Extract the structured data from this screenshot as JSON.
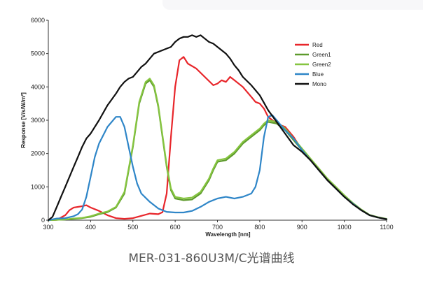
{
  "chart_data": {
    "type": "line",
    "title": "",
    "xlabel": "Wavelength [nm]",
    "ylabel": "Response [V/s/W/m²]",
    "xlim": [
      300,
      1100
    ],
    "ylim": [
      0,
      6000
    ],
    "x_ticks": [
      "300",
      "400",
      "500",
      "600",
      "700",
      "800",
      "900",
      "1000",
      "1100"
    ],
    "y_ticks": [
      "0",
      "1000",
      "2000",
      "3000",
      "4000",
      "5000",
      "6000"
    ],
    "grid": false,
    "legend_position": "top-right",
    "series": [
      {
        "name": "Red",
        "color": "#e8262b",
        "points": [
          [
            300,
            0
          ],
          [
            320,
            10
          ],
          [
            340,
            150
          ],
          [
            350,
            300
          ],
          [
            360,
            380
          ],
          [
            380,
            420
          ],
          [
            390,
            450
          ],
          [
            400,
            380
          ],
          [
            420,
            280
          ],
          [
            440,
            150
          ],
          [
            460,
            60
          ],
          [
            480,
            40
          ],
          [
            500,
            60
          ],
          [
            520,
            130
          ],
          [
            540,
            200
          ],
          [
            560,
            180
          ],
          [
            570,
            240
          ],
          [
            580,
            800
          ],
          [
            590,
            2500
          ],
          [
            600,
            4000
          ],
          [
            610,
            4800
          ],
          [
            620,
            4900
          ],
          [
            630,
            4700
          ],
          [
            650,
            4550
          ],
          [
            670,
            4300
          ],
          [
            690,
            4050
          ],
          [
            700,
            4100
          ],
          [
            710,
            4200
          ],
          [
            720,
            4150
          ],
          [
            730,
            4300
          ],
          [
            740,
            4200
          ],
          [
            760,
            4000
          ],
          [
            780,
            3700
          ],
          [
            790,
            3550
          ],
          [
            800,
            3500
          ],
          [
            810,
            3350
          ],
          [
            820,
            3100
          ],
          [
            830,
            3000
          ],
          [
            840,
            2900
          ],
          [
            860,
            2800
          ],
          [
            880,
            2500
          ],
          [
            900,
            2100
          ],
          [
            920,
            1800
          ],
          [
            940,
            1500
          ],
          [
            960,
            1200
          ],
          [
            980,
            950
          ],
          [
            1000,
            700
          ],
          [
            1020,
            500
          ],
          [
            1040,
            300
          ],
          [
            1060,
            150
          ],
          [
            1080,
            80
          ],
          [
            1100,
            30
          ]
        ]
      },
      {
        "name": "Green1",
        "color": "#5d9a2c",
        "points": [
          [
            300,
            0
          ],
          [
            320,
            10
          ],
          [
            340,
            20
          ],
          [
            360,
            40
          ],
          [
            380,
            60
          ],
          [
            400,
            100
          ],
          [
            420,
            180
          ],
          [
            440,
            240
          ],
          [
            460,
            380
          ],
          [
            480,
            800
          ],
          [
            500,
            2200
          ],
          [
            515,
            3500
          ],
          [
            530,
            4100
          ],
          [
            540,
            4200
          ],
          [
            550,
            4000
          ],
          [
            560,
            3400
          ],
          [
            570,
            2500
          ],
          [
            580,
            1600
          ],
          [
            590,
            900
          ],
          [
            600,
            650
          ],
          [
            620,
            600
          ],
          [
            640,
            620
          ],
          [
            660,
            800
          ],
          [
            680,
            1200
          ],
          [
            690,
            1500
          ],
          [
            700,
            1750
          ],
          [
            720,
            1800
          ],
          [
            740,
            2000
          ],
          [
            760,
            2300
          ],
          [
            780,
            2500
          ],
          [
            800,
            2700
          ],
          [
            810,
            2850
          ],
          [
            820,
            2950
          ],
          [
            840,
            2900
          ],
          [
            860,
            2700
          ],
          [
            880,
            2400
          ],
          [
            900,
            2100
          ],
          [
            920,
            1800
          ],
          [
            940,
            1500
          ],
          [
            960,
            1200
          ],
          [
            980,
            950
          ],
          [
            1000,
            700
          ],
          [
            1020,
            500
          ],
          [
            1040,
            300
          ],
          [
            1060,
            150
          ],
          [
            1080,
            80
          ],
          [
            1100,
            30
          ]
        ]
      },
      {
        "name": "Green2",
        "color": "#86c540",
        "points": [
          [
            300,
            0
          ],
          [
            320,
            10
          ],
          [
            340,
            20
          ],
          [
            360,
            50
          ],
          [
            380,
            70
          ],
          [
            400,
            120
          ],
          [
            420,
            200
          ],
          [
            440,
            260
          ],
          [
            460,
            400
          ],
          [
            480,
            850
          ],
          [
            500,
            2250
          ],
          [
            515,
            3550
          ],
          [
            530,
            4150
          ],
          [
            540,
            4250
          ],
          [
            550,
            4050
          ],
          [
            560,
            3450
          ],
          [
            570,
            2550
          ],
          [
            580,
            1650
          ],
          [
            590,
            950
          ],
          [
            600,
            700
          ],
          [
            620,
            650
          ],
          [
            640,
            680
          ],
          [
            660,
            850
          ],
          [
            680,
            1250
          ],
          [
            690,
            1550
          ],
          [
            700,
            1800
          ],
          [
            720,
            1850
          ],
          [
            740,
            2050
          ],
          [
            760,
            2350
          ],
          [
            780,
            2550
          ],
          [
            800,
            2750
          ],
          [
            810,
            2900
          ],
          [
            820,
            3000
          ],
          [
            840,
            2950
          ],
          [
            860,
            2750
          ],
          [
            880,
            2450
          ],
          [
            900,
            2150
          ],
          [
            920,
            1850
          ],
          [
            940,
            1550
          ],
          [
            960,
            1250
          ],
          [
            980,
            1000
          ],
          [
            1000,
            750
          ],
          [
            1020,
            520
          ],
          [
            1040,
            320
          ],
          [
            1060,
            160
          ],
          [
            1080,
            90
          ],
          [
            1100,
            40
          ]
        ]
      },
      {
        "name": "Blue",
        "color": "#2f86c8",
        "points": [
          [
            300,
            0
          ],
          [
            320,
            50
          ],
          [
            340,
            60
          ],
          [
            360,
            120
          ],
          [
            370,
            180
          ],
          [
            380,
            320
          ],
          [
            390,
            700
          ],
          [
            400,
            1300
          ],
          [
            410,
            1900
          ],
          [
            420,
            2300
          ],
          [
            440,
            2800
          ],
          [
            460,
            3100
          ],
          [
            470,
            3100
          ],
          [
            480,
            2800
          ],
          [
            490,
            2200
          ],
          [
            500,
            1600
          ],
          [
            510,
            1100
          ],
          [
            520,
            800
          ],
          [
            540,
            550
          ],
          [
            560,
            350
          ],
          [
            580,
            250
          ],
          [
            600,
            230
          ],
          [
            620,
            230
          ],
          [
            640,
            280
          ],
          [
            660,
            400
          ],
          [
            680,
            550
          ],
          [
            700,
            650
          ],
          [
            720,
            700
          ],
          [
            740,
            650
          ],
          [
            760,
            700
          ],
          [
            780,
            800
          ],
          [
            790,
            1000
          ],
          [
            800,
            1500
          ],
          [
            810,
            2500
          ],
          [
            820,
            3100
          ],
          [
            830,
            3150
          ],
          [
            840,
            3000
          ],
          [
            860,
            2700
          ],
          [
            880,
            2450
          ],
          [
            900,
            2100
          ],
          [
            920,
            1800
          ],
          [
            940,
            1500
          ],
          [
            960,
            1200
          ],
          [
            980,
            950
          ],
          [
            1000,
            700
          ],
          [
            1020,
            500
          ],
          [
            1040,
            300
          ],
          [
            1060,
            150
          ],
          [
            1080,
            80
          ],
          [
            1100,
            30
          ]
        ]
      },
      {
        "name": "Mono",
        "color": "#111111",
        "points": [
          [
            300,
            0
          ],
          [
            310,
            100
          ],
          [
            320,
            400
          ],
          [
            330,
            700
          ],
          [
            340,
            1000
          ],
          [
            350,
            1300
          ],
          [
            360,
            1600
          ],
          [
            370,
            1900
          ],
          [
            380,
            2200
          ],
          [
            390,
            2450
          ],
          [
            400,
            2600
          ],
          [
            420,
            3000
          ],
          [
            440,
            3450
          ],
          [
            460,
            3800
          ],
          [
            470,
            4000
          ],
          [
            480,
            4150
          ],
          [
            490,
            4250
          ],
          [
            500,
            4300
          ],
          [
            510,
            4450
          ],
          [
            520,
            4600
          ],
          [
            530,
            4700
          ],
          [
            540,
            4850
          ],
          [
            550,
            5000
          ],
          [
            570,
            5100
          ],
          [
            580,
            5150
          ],
          [
            590,
            5200
          ],
          [
            600,
            5350
          ],
          [
            610,
            5450
          ],
          [
            620,
            5500
          ],
          [
            630,
            5500
          ],
          [
            640,
            5550
          ],
          [
            650,
            5500
          ],
          [
            660,
            5550
          ],
          [
            670,
            5450
          ],
          [
            680,
            5350
          ],
          [
            690,
            5300
          ],
          [
            700,
            5200
          ],
          [
            710,
            5100
          ],
          [
            720,
            5000
          ],
          [
            730,
            4850
          ],
          [
            740,
            4650
          ],
          [
            750,
            4500
          ],
          [
            760,
            4300
          ],
          [
            780,
            4050
          ],
          [
            800,
            3750
          ],
          [
            820,
            3300
          ],
          [
            840,
            2950
          ],
          [
            860,
            2600
          ],
          [
            880,
            2250
          ],
          [
            900,
            2050
          ],
          [
            920,
            1800
          ],
          [
            940,
            1500
          ],
          [
            960,
            1200
          ],
          [
            980,
            950
          ],
          [
            1000,
            700
          ],
          [
            1020,
            480
          ],
          [
            1040,
            300
          ],
          [
            1060,
            150
          ],
          [
            1080,
            80
          ],
          [
            1100,
            30
          ]
        ]
      }
    ]
  },
  "caption": "MER-031-860U3M/C光谱曲线"
}
